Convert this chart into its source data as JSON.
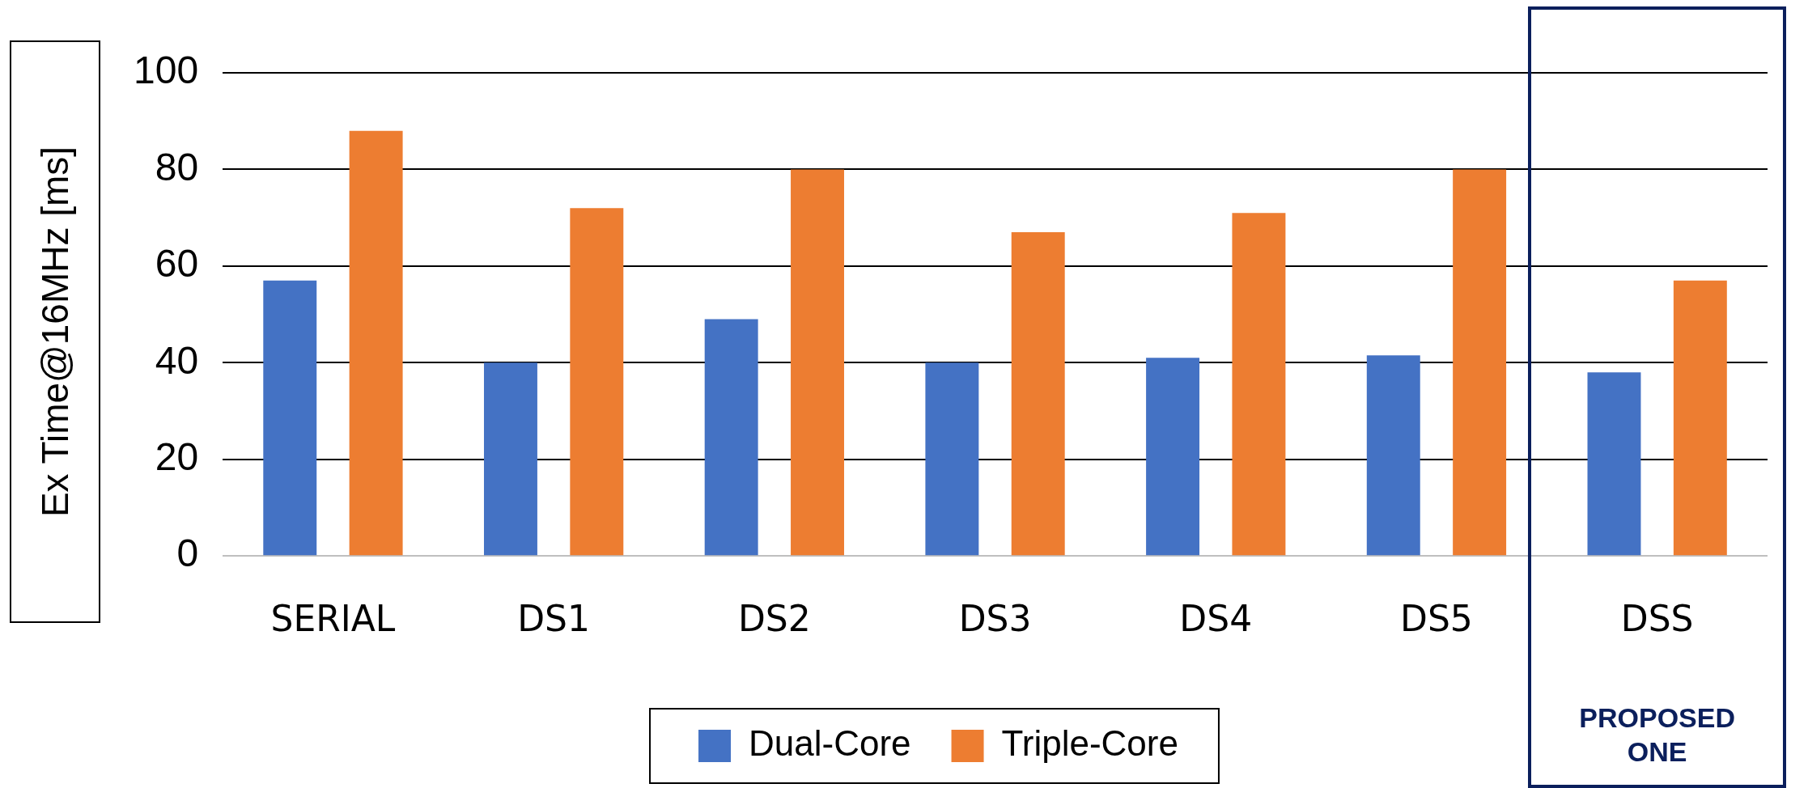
{
  "chart_data": {
    "type": "bar",
    "ylabel": "Ex Time@16MHz [ms]",
    "categories": [
      "SERIAL",
      "DS1",
      "DS2",
      "DS3",
      "DS4",
      "DS5",
      "DSS"
    ],
    "series": [
      {
        "name": "Dual-Core",
        "color": "#4472c4",
        "values": [
          57,
          40,
          49,
          40,
          41,
          41.5,
          38
        ]
      },
      {
        "name": "Triple-Core",
        "color": "#ed7d31",
        "values": [
          88,
          72,
          80,
          67,
          71,
          80,
          57
        ]
      }
    ],
    "ylim": [
      0,
      100
    ],
    "yticks": [
      0,
      20,
      40,
      60,
      80,
      100
    ],
    "grid": "y",
    "legend": "bottom",
    "annotations": [
      "PROPOSED ONE"
    ]
  }
}
